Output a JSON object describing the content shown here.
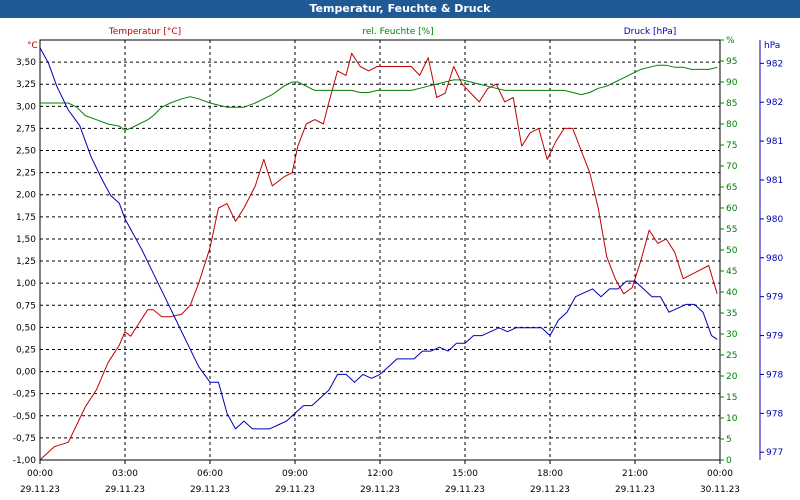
{
  "chart_data": {
    "type": "line",
    "title": "Temperatur, Feuchte & Druck",
    "colors": {
      "temperature": "#c00000",
      "humidity": "#008000",
      "pressure": "#0000b0",
      "title_bg": "#1f5a96",
      "grid": "#000000"
    },
    "x": {
      "start_hour": 0,
      "end_hour": 24,
      "tick_hours": [
        0,
        3,
        6,
        9,
        12,
        15,
        18,
        21,
        24
      ],
      "tick_labels": [
        "00:00",
        "03:00",
        "06:00",
        "09:00",
        "12:00",
        "15:00",
        "18:00",
        "21:00",
        "00:00"
      ],
      "date_labels": [
        "29.11.23",
        "29.11.23",
        "29.11.23",
        "29.11.23",
        "29.11.23",
        "29.11.23",
        "29.11.23",
        "29.11.23",
        "30.11.23"
      ]
    },
    "axes": {
      "temperature": {
        "label": "Temperatur [°C]",
        "unit": "°C",
        "range": [
          -1.0,
          3.75
        ],
        "ticks": [
          -1.0,
          -0.75,
          -0.5,
          -0.25,
          0.0,
          0.25,
          0.5,
          0.75,
          1.0,
          1.25,
          1.5,
          1.75,
          2.0,
          2.25,
          2.5,
          2.75,
          3.0,
          3.25,
          3.5
        ],
        "tick_labels": [
          "-1,00",
          "-0,75",
          "-0,50",
          "-0,25",
          "0,00",
          "0,25",
          "0,50",
          "0,75",
          "1,00",
          "1,25",
          "1,50",
          "1,75",
          "2,00",
          "2,25",
          "2,50",
          "2,75",
          "3,00",
          "3,25",
          "3,50"
        ]
      },
      "humidity": {
        "label": "rel. Feuchte [%]",
        "unit": "%",
        "range": [
          0,
          100
        ],
        "ticks": [
          0,
          5,
          10,
          15,
          20,
          25,
          30,
          35,
          40,
          45,
          50,
          55,
          60,
          65,
          70,
          75,
          80,
          85,
          90,
          95,
          100
        ],
        "tick_labels": [
          "0",
          "5",
          "10",
          "15",
          "20",
          "25",
          "30",
          "35",
          "40",
          "45",
          "50",
          "55",
          "60",
          "65",
          "70",
          "75",
          "80",
          "85",
          "90",
          "95",
          "%"
        ]
      },
      "pressure": {
        "label": "Druck [hPa]",
        "unit": "hPa",
        "range": [
          976.9,
          982.3
        ],
        "ticks": [
          977.0,
          977.5,
          978.0,
          978.5,
          979.0,
          979.5,
          980.0,
          980.5,
          981.0,
          981.5,
          982.0
        ],
        "tick_labels": [
          "977",
          "978",
          "978",
          "979",
          "979",
          "980",
          "980",
          "981",
          "981",
          "982",
          "982"
        ]
      }
    },
    "series": [
      {
        "name": "Temperatur",
        "axis": "temperature",
        "x": [
          0,
          0.5,
          1,
          1.3,
          1.6,
          2,
          2.4,
          2.8,
          3,
          3.2,
          3.5,
          3.8,
          4,
          4.3,
          4.6,
          5,
          5.3,
          5.6,
          6,
          6.3,
          6.6,
          6.9,
          7.2,
          7.6,
          7.9,
          8.2,
          8.6,
          8.9,
          9.1,
          9.4,
          9.7,
          10,
          10.2,
          10.5,
          10.8,
          11,
          11.3,
          11.6,
          11.9,
          12.2,
          12.5,
          12.8,
          13.1,
          13.4,
          13.7,
          14,
          14.3,
          14.6,
          14.9,
          15.2,
          15.5,
          15.8,
          16.1,
          16.4,
          16.7,
          17,
          17.3,
          17.6,
          17.9,
          18.2,
          18.5,
          18.8,
          19.1,
          19.4,
          19.7,
          20,
          20.3,
          20.6,
          20.9,
          21.2,
          21.5,
          21.8,
          22.1,
          22.4,
          22.7,
          23,
          23.3,
          23.6,
          23.9
        ],
        "values": [
          -1.0,
          -0.85,
          -0.8,
          -0.6,
          -0.4,
          -0.2,
          0.1,
          0.3,
          0.45,
          0.4,
          0.55,
          0.7,
          0.7,
          0.62,
          0.62,
          0.65,
          0.75,
          1.0,
          1.4,
          1.85,
          1.9,
          1.7,
          1.85,
          2.1,
          2.4,
          2.1,
          2.2,
          2.25,
          2.55,
          2.8,
          2.85,
          2.8,
          3.05,
          3.4,
          3.35,
          3.6,
          3.45,
          3.4,
          3.45,
          3.45,
          3.45,
          3.45,
          3.45,
          3.35,
          3.55,
          3.1,
          3.15,
          3.45,
          3.25,
          3.15,
          3.05,
          3.2,
          3.25,
          3.05,
          3.1,
          2.55,
          2.7,
          2.75,
          2.4,
          2.6,
          2.75,
          2.75,
          2.5,
          2.25,
          1.85,
          1.3,
          1.05,
          0.88,
          0.95,
          1.25,
          1.6,
          1.45,
          1.5,
          1.35,
          1.05,
          1.1,
          1.15,
          1.2,
          0.88
        ]
      },
      {
        "name": "rel. Feuchte",
        "axis": "humidity",
        "x": [
          0,
          0.5,
          1,
          1.3,
          1.6,
          2,
          2.4,
          2.8,
          3,
          3.2,
          3.5,
          3.8,
          4,
          4.3,
          4.6,
          5,
          5.3,
          5.6,
          6,
          6.3,
          6.6,
          6.9,
          7.2,
          7.6,
          7.9,
          8.2,
          8.6,
          8.9,
          9.1,
          9.4,
          9.7,
          10,
          10.2,
          10.5,
          10.8,
          11,
          11.3,
          11.6,
          11.9,
          12.2,
          12.5,
          12.8,
          13.1,
          13.4,
          13.7,
          14,
          14.3,
          14.6,
          14.9,
          15.2,
          15.5,
          15.8,
          16.1,
          16.4,
          16.7,
          17,
          17.3,
          17.6,
          17.9,
          18.2,
          18.5,
          18.8,
          19.1,
          19.4,
          19.7,
          20,
          20.3,
          20.6,
          20.9,
          21.2,
          21.5,
          21.8,
          22.1,
          22.4,
          22.7,
          23,
          23.3,
          23.6,
          23.9
        ],
        "values": [
          85,
          85,
          85,
          84,
          82,
          81,
          80,
          79.5,
          78.5,
          79,
          80,
          81,
          82,
          84,
          85,
          86,
          86.5,
          86,
          85,
          84.5,
          84,
          84,
          84,
          85,
          86,
          87,
          89,
          90,
          90,
          89,
          88,
          88,
          88,
          88,
          88,
          88,
          87.5,
          87.5,
          88,
          88,
          88,
          88,
          88,
          88.5,
          89,
          89.5,
          90,
          90.5,
          90.5,
          90,
          89.5,
          89,
          88.5,
          88,
          88,
          88,
          88,
          88,
          88,
          88,
          88,
          87.5,
          87,
          87.5,
          88.5,
          89,
          90,
          91,
          92,
          93,
          93.5,
          94,
          94,
          93.5,
          93.5,
          93,
          93,
          93,
          93.5
        ]
      },
      {
        "name": "Druck",
        "axis": "pressure",
        "x": [
          0,
          0.3,
          0.6,
          1,
          1.4,
          1.8,
          2.2,
          2.5,
          2.8,
          3,
          3.3,
          3.6,
          4,
          4.4,
          4.8,
          5.2,
          5.6,
          6,
          6.3,
          6.6,
          6.9,
          7.2,
          7.5,
          7.8,
          8.1,
          8.4,
          8.7,
          9,
          9.3,
          9.6,
          9.9,
          10.2,
          10.5,
          10.8,
          11.1,
          11.4,
          11.7,
          12,
          12.3,
          12.6,
          12.9,
          13.2,
          13.5,
          13.8,
          14.1,
          14.4,
          14.7,
          15,
          15.3,
          15.6,
          15.9,
          16.2,
          16.5,
          16.8,
          17.1,
          17.4,
          17.7,
          18,
          18.3,
          18.6,
          18.9,
          19.2,
          19.5,
          19.8,
          20.1,
          20.4,
          20.7,
          21,
          21.3,
          21.6,
          21.9,
          22.2,
          22.5,
          22.8,
          23.1,
          23.4,
          23.7,
          23.9
        ],
        "values": [
          982.2,
          982.0,
          981.7,
          981.4,
          981.2,
          980.8,
          980.5,
          980.3,
          980.2,
          980.0,
          979.8,
          979.6,
          979.3,
          979.0,
          978.7,
          978.4,
          978.1,
          977.9,
          977.9,
          977.5,
          977.3,
          977.4,
          977.3,
          977.3,
          977.3,
          977.35,
          977.4,
          977.5,
          977.6,
          977.6,
          977.7,
          977.8,
          978.0,
          978.0,
          977.9,
          978.0,
          977.95,
          978.0,
          978.1,
          978.2,
          978.2,
          978.2,
          978.3,
          978.3,
          978.35,
          978.3,
          978.4,
          978.4,
          978.5,
          978.5,
          978.55,
          978.6,
          978.55,
          978.6,
          978.6,
          978.6,
          978.6,
          978.5,
          978.7,
          978.8,
          979.0,
          979.05,
          979.1,
          979.0,
          979.1,
          979.1,
          979.2,
          979.2,
          979.1,
          979.0,
          979.0,
          978.8,
          978.85,
          978.9,
          978.9,
          978.8,
          978.5,
          978.45
        ]
      }
    ]
  }
}
